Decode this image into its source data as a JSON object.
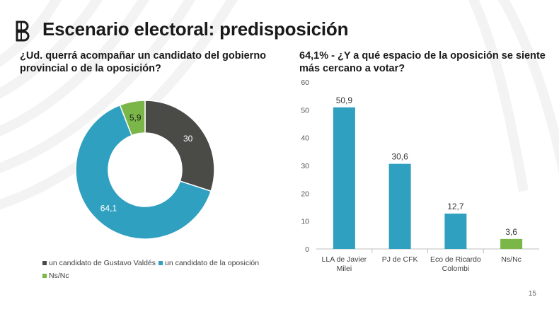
{
  "title": "Escenario electoral: predisposición",
  "page_number": "15",
  "colors": {
    "dark": "#4a4a47",
    "blue": "#2fa0bf",
    "green": "#7ab648",
    "deco": "#f2f2f2"
  },
  "chart_data": [
    {
      "type": "pie",
      "title": "¿Ud. querrá acompañar un candidato del gobierno provincial o de la oposición?",
      "categories": [
        "un candidato de Gustavo Valdés",
        "un candidato de la oposición",
        "Ns/Nc"
      ],
      "values": [
        30,
        64.1,
        5.9
      ],
      "value_labels": [
        "30",
        "64,1",
        "5,9"
      ],
      "legend_position": "bottom",
      "donut": true
    },
    {
      "type": "bar",
      "title": "64,1% - ¿Y a qué espacio de la oposición se siente más cercano a votar?",
      "categories": [
        [
          "LLA de Javier",
          "Milei"
        ],
        [
          "PJ de CFK"
        ],
        [
          "Eco de Ricardo",
          "Colombi"
        ],
        [
          "Ns/Nc"
        ]
      ],
      "values": [
        50.9,
        30.6,
        12.7,
        3.6
      ],
      "value_labels": [
        "50,9",
        "30,6",
        "12,7",
        "3,6"
      ],
      "ylim": [
        0,
        60
      ],
      "yticks": [
        0,
        10,
        20,
        30,
        40,
        50,
        60
      ],
      "grid": false,
      "xlabel": "",
      "ylabel": ""
    }
  ]
}
